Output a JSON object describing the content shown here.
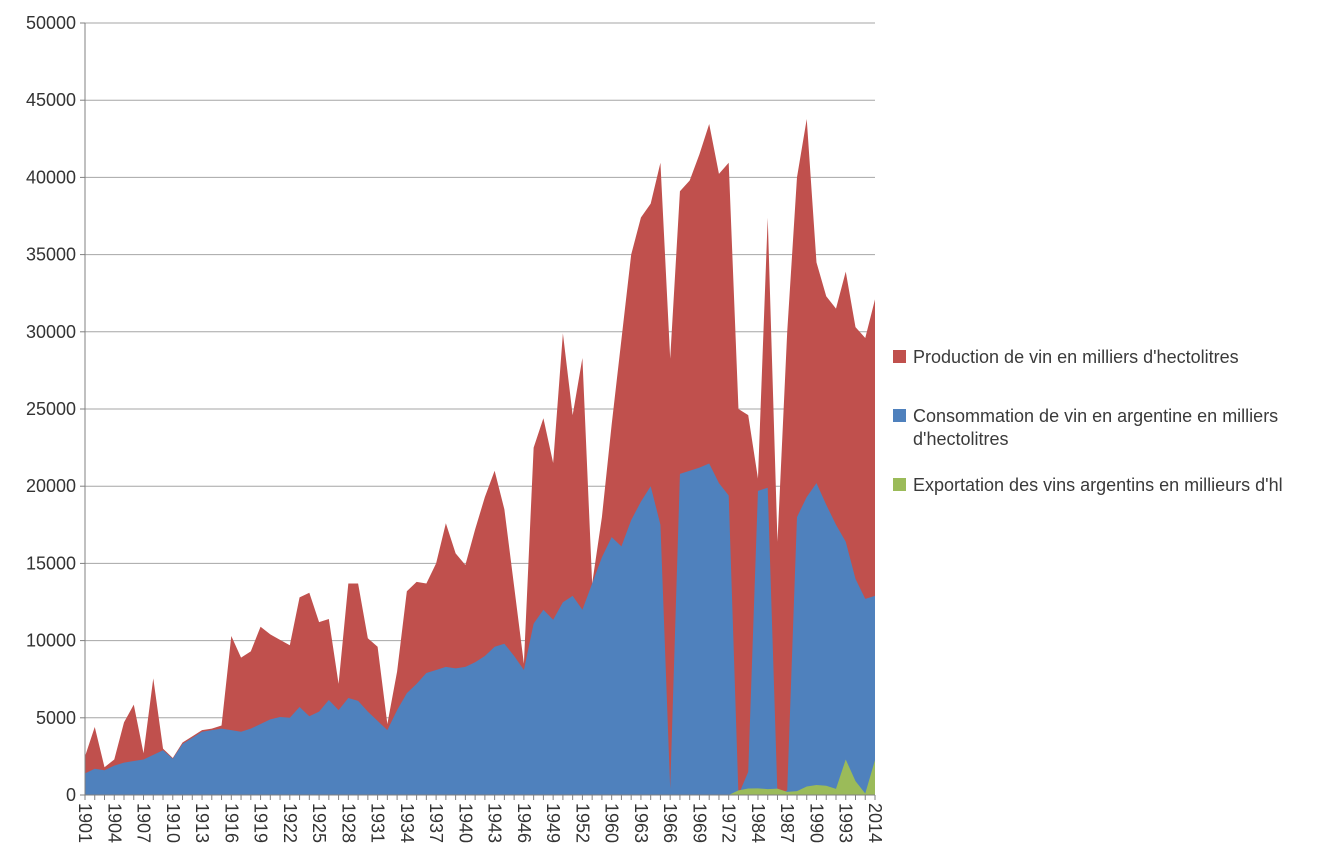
{
  "chart_data": {
    "type": "area",
    "mode": "overlapping",
    "title": "",
    "xlabel": "",
    "ylabel": "",
    "ylim": [
      0,
      50000
    ],
    "y_tick_step": 5000,
    "grid": "horizontal-gridlines-on",
    "legend_position": "right",
    "n_points": 82,
    "x_tick_step": 3,
    "x_tick_labels": [
      "1901",
      "1904",
      "1907",
      "1910",
      "1913",
      "1916",
      "1919",
      "1922",
      "1925",
      "1928",
      "1931",
      "1934",
      "1937",
      "1940",
      "1943",
      "1946",
      "1949",
      "1952",
      "1960",
      "1963",
      "1966",
      "1969",
      "1972",
      "1984",
      "1987",
      "1990",
      "1993",
      "2014"
    ],
    "series": [
      {
        "name": "Production de vin en milliers d'hectolitres",
        "color": "#C0504D",
        "values": [
          2500,
          4400,
          1800,
          2300,
          4700,
          5850,
          2700,
          7550,
          3000,
          2400,
          3400,
          3800,
          4200,
          4300,
          4500,
          10300,
          8900,
          9300,
          10900,
          10400,
          10050,
          9700,
          12800,
          13100,
          11200,
          11400,
          7200,
          13700,
          13700,
          10150,
          9600,
          4600,
          8000,
          13200,
          13800,
          13700,
          15000,
          17600,
          15650,
          14900,
          17200,
          19300,
          21000,
          18500,
          13500,
          8500,
          22500,
          24400,
          21500,
          29900,
          24600,
          28300,
          13700,
          18000,
          24000,
          29500,
          35000,
          37400,
          38300,
          40950,
          28260,
          39100,
          39800,
          41500,
          43460,
          40230,
          40950,
          25000,
          24600,
          20500,
          37390,
          16400,
          30000,
          40000,
          43780,
          34500,
          32300,
          31500,
          33900,
          30300,
          29600,
          32100
        ]
      },
      {
        "name": "Consommation de vin en argentine en milliers d'hectolitres",
        "color": "#4F81BD",
        "values": [
          1400,
          1700,
          1600,
          1900,
          2100,
          2200,
          2300,
          2600,
          2900,
          2350,
          3300,
          3700,
          4100,
          4200,
          4300,
          4200,
          4100,
          4300,
          4600,
          4900,
          5050,
          5000,
          5700,
          5100,
          5400,
          6150,
          5500,
          6280,
          6100,
          5400,
          4800,
          4200,
          5500,
          6600,
          7200,
          7900,
          8100,
          8300,
          8200,
          8300,
          8600,
          9000,
          9600,
          9800,
          9000,
          8100,
          11100,
          12000,
          11350,
          12480,
          12900,
          12000,
          13700,
          15400,
          16700,
          16100,
          17800,
          19000,
          20000,
          17500,
          400,
          20800,
          21000,
          21200,
          21470,
          20200,
          19400,
          0,
          1500,
          19700,
          19900,
          0,
          300,
          18000,
          19300,
          20200,
          18800,
          17500,
          16400,
          14000,
          12700,
          12900
        ]
      },
      {
        "name": "Exportation des vins argentins en millieurs d'hl",
        "color": "#9BBB59",
        "values": [
          0,
          0,
          0,
          0,
          0,
          0,
          0,
          0,
          0,
          0,
          0,
          0,
          0,
          0,
          0,
          0,
          0,
          0,
          0,
          0,
          0,
          0,
          0,
          0,
          0,
          0,
          0,
          0,
          0,
          0,
          0,
          0,
          0,
          0,
          0,
          0,
          0,
          0,
          0,
          0,
          0,
          0,
          0,
          0,
          0,
          0,
          0,
          0,
          0,
          0,
          0,
          0,
          0,
          0,
          0,
          0,
          0,
          0,
          0,
          0,
          0,
          0,
          0,
          0,
          0,
          0,
          0,
          300,
          420,
          430,
          380,
          410,
          200,
          250,
          550,
          650,
          600,
          400,
          2300,
          900,
          100,
          2260
        ]
      }
    ]
  },
  "style": {
    "background": "#FFFFFF",
    "gridline_color": "#A6A6A6",
    "axis_color": "#808080",
    "axis_text_color": "#333333"
  }
}
